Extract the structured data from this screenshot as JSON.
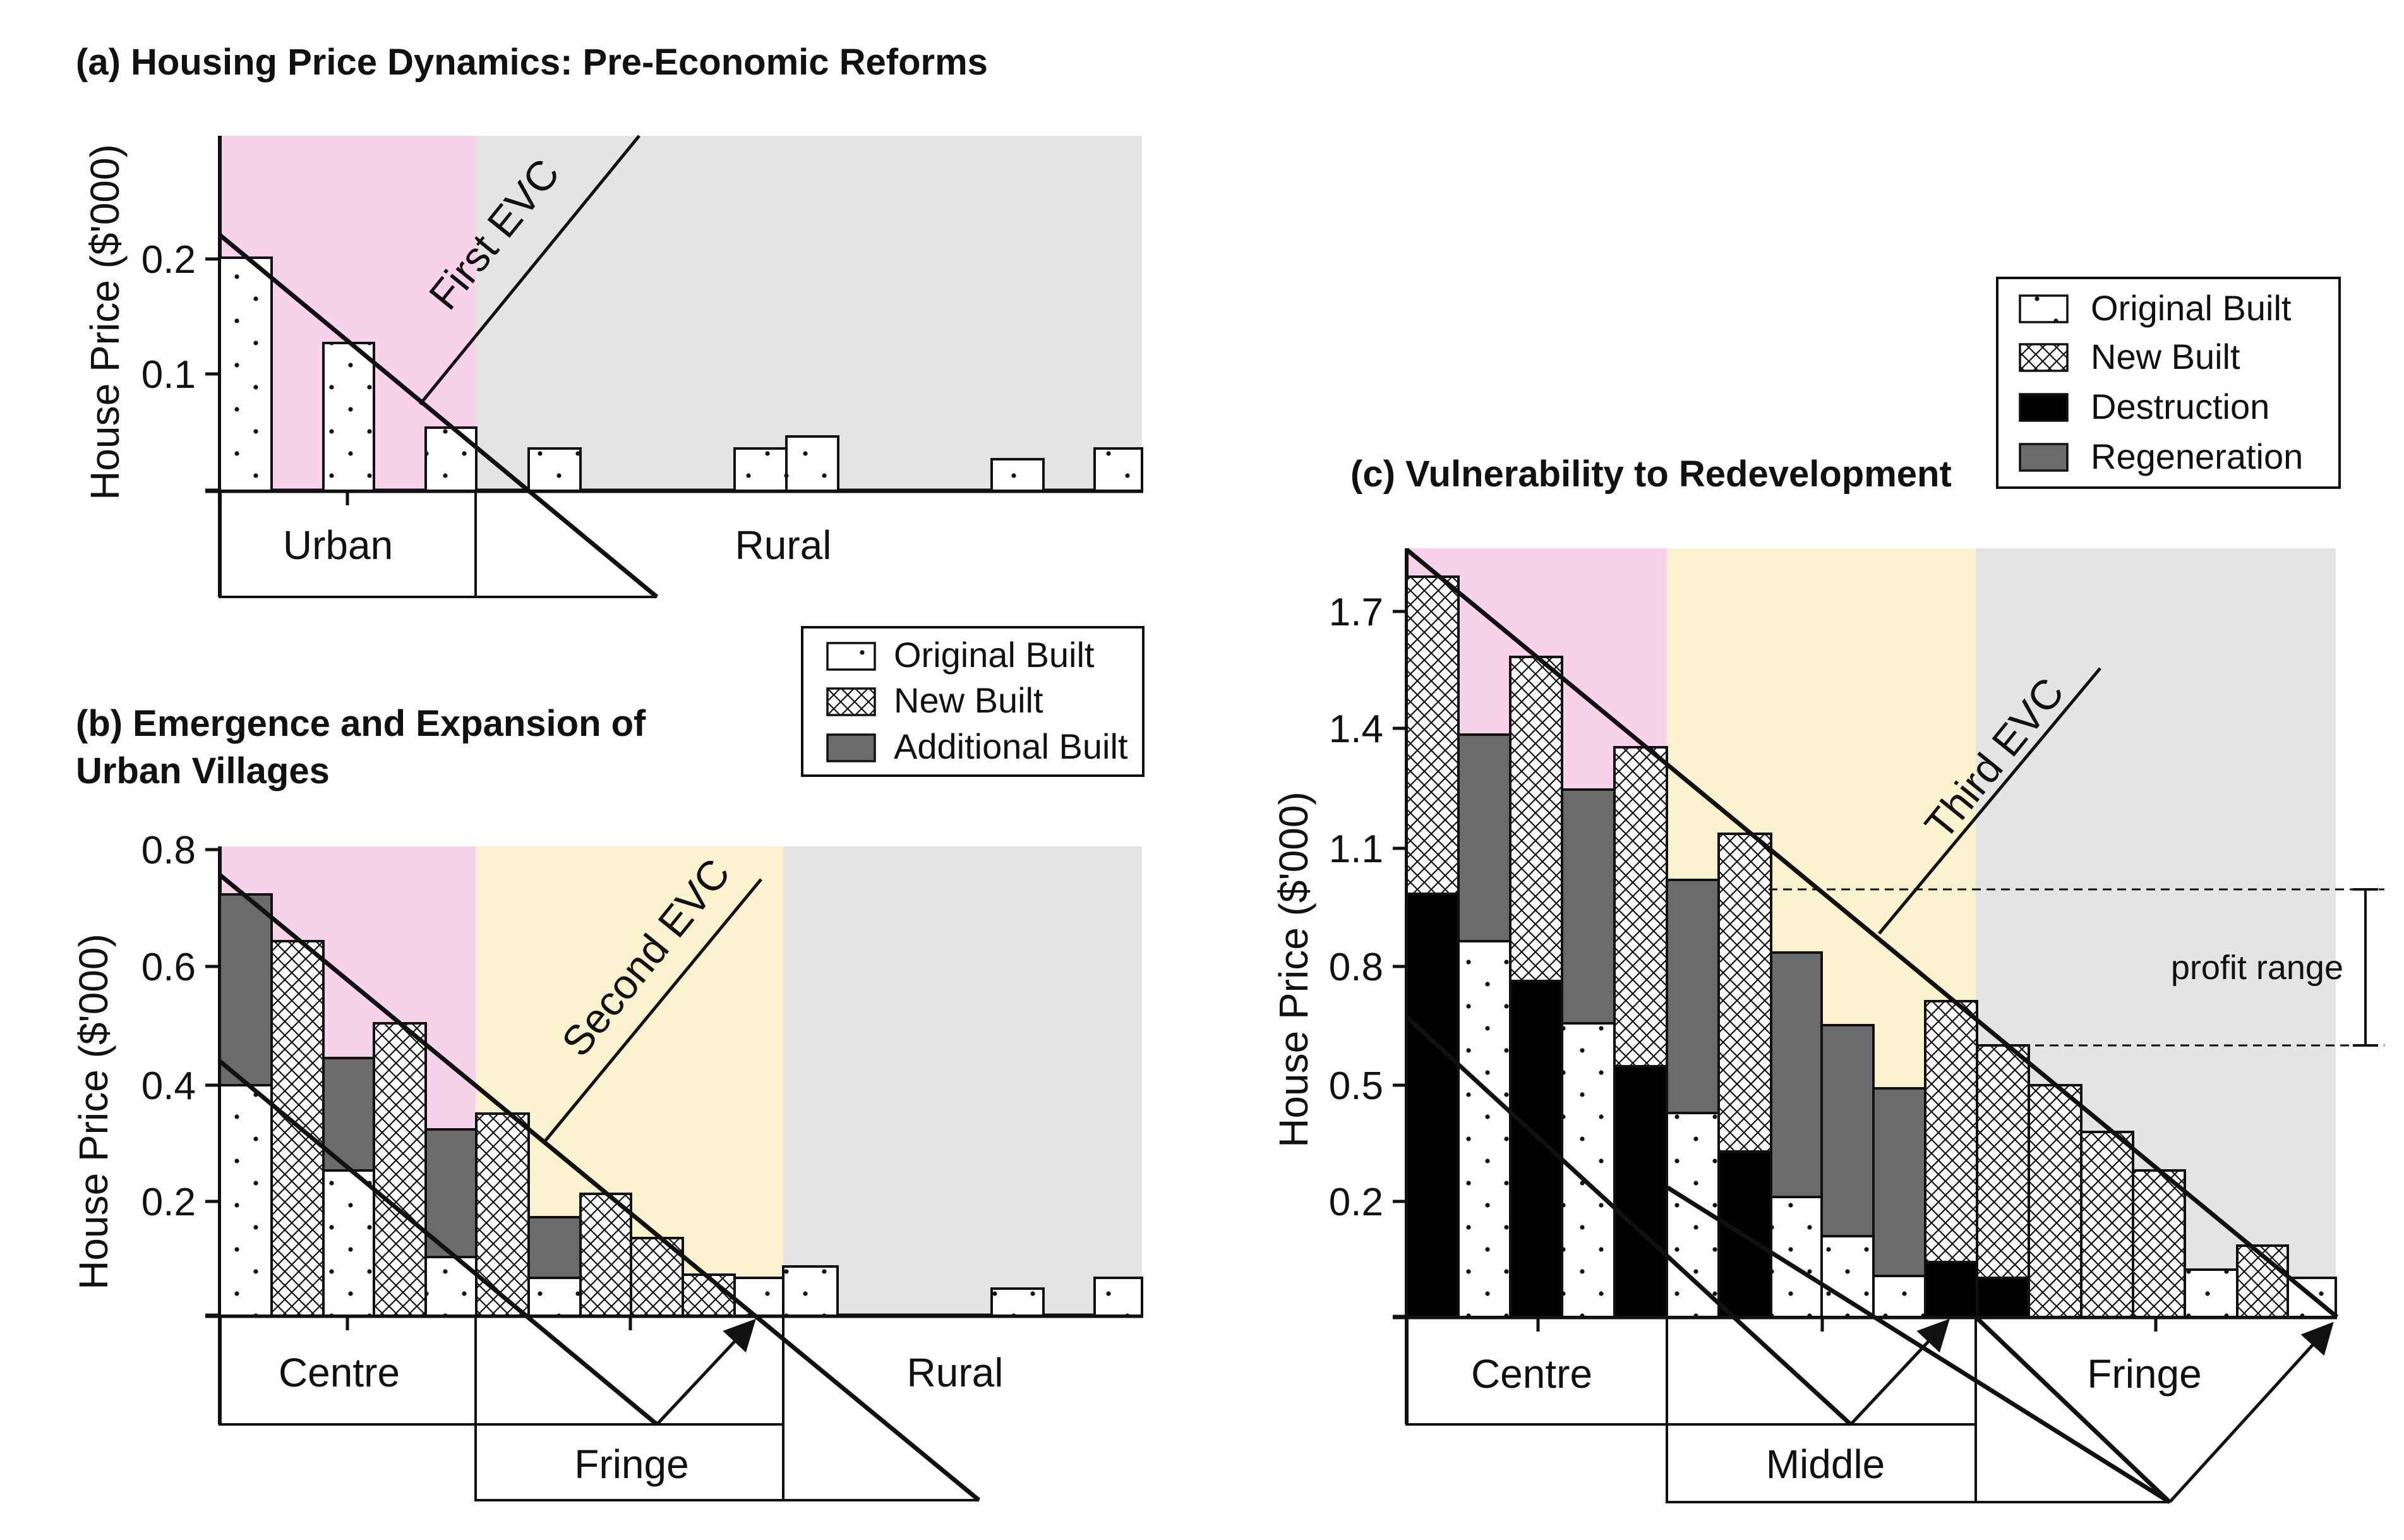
{
  "colors": {
    "pink": "#f7d2ea",
    "yellow": "#faf2cf",
    "grey": "#e4e4e4",
    "dark": "#6b6b6b",
    "black": "#000000",
    "outline": "#111111"
  },
  "panel_a": {
    "title": "(a) Housing Price Dynamics: Pre-Economic Reforms",
    "ylabel": "House Price ($'000)",
    "ticks": [
      "0.2",
      "0.1"
    ],
    "evc_label": "First EVC",
    "regions": [
      "Urban",
      "Rural"
    ]
  },
  "panel_b": {
    "title_line1": "(b) Emergence and Expansion of",
    "title_line2": "Urban Villages",
    "ylabel": "House Price ($'000)",
    "ticks": [
      "0.8",
      "0.6",
      "0.4",
      "0.2"
    ],
    "evc_label": "Second EVC",
    "regions": [
      "Centre",
      "Fringe",
      "Rural"
    ],
    "legend": [
      "Original Built",
      "New Built",
      "Additional Built"
    ]
  },
  "panel_c": {
    "title": "(c) Vulnerability to Redevelopment",
    "ylabel": "House Price ($'000)",
    "ticks": [
      "1.7",
      "1.4",
      "1.1",
      "0.8",
      "0.5",
      "0.2"
    ],
    "evc_label": "Third EVC",
    "regions": [
      "Centre",
      "Middle",
      "Fringe"
    ],
    "legend": [
      "Original Built",
      "New Built",
      "Destruction",
      "Regeneration"
    ],
    "profit_label": "profit range"
  }
}
